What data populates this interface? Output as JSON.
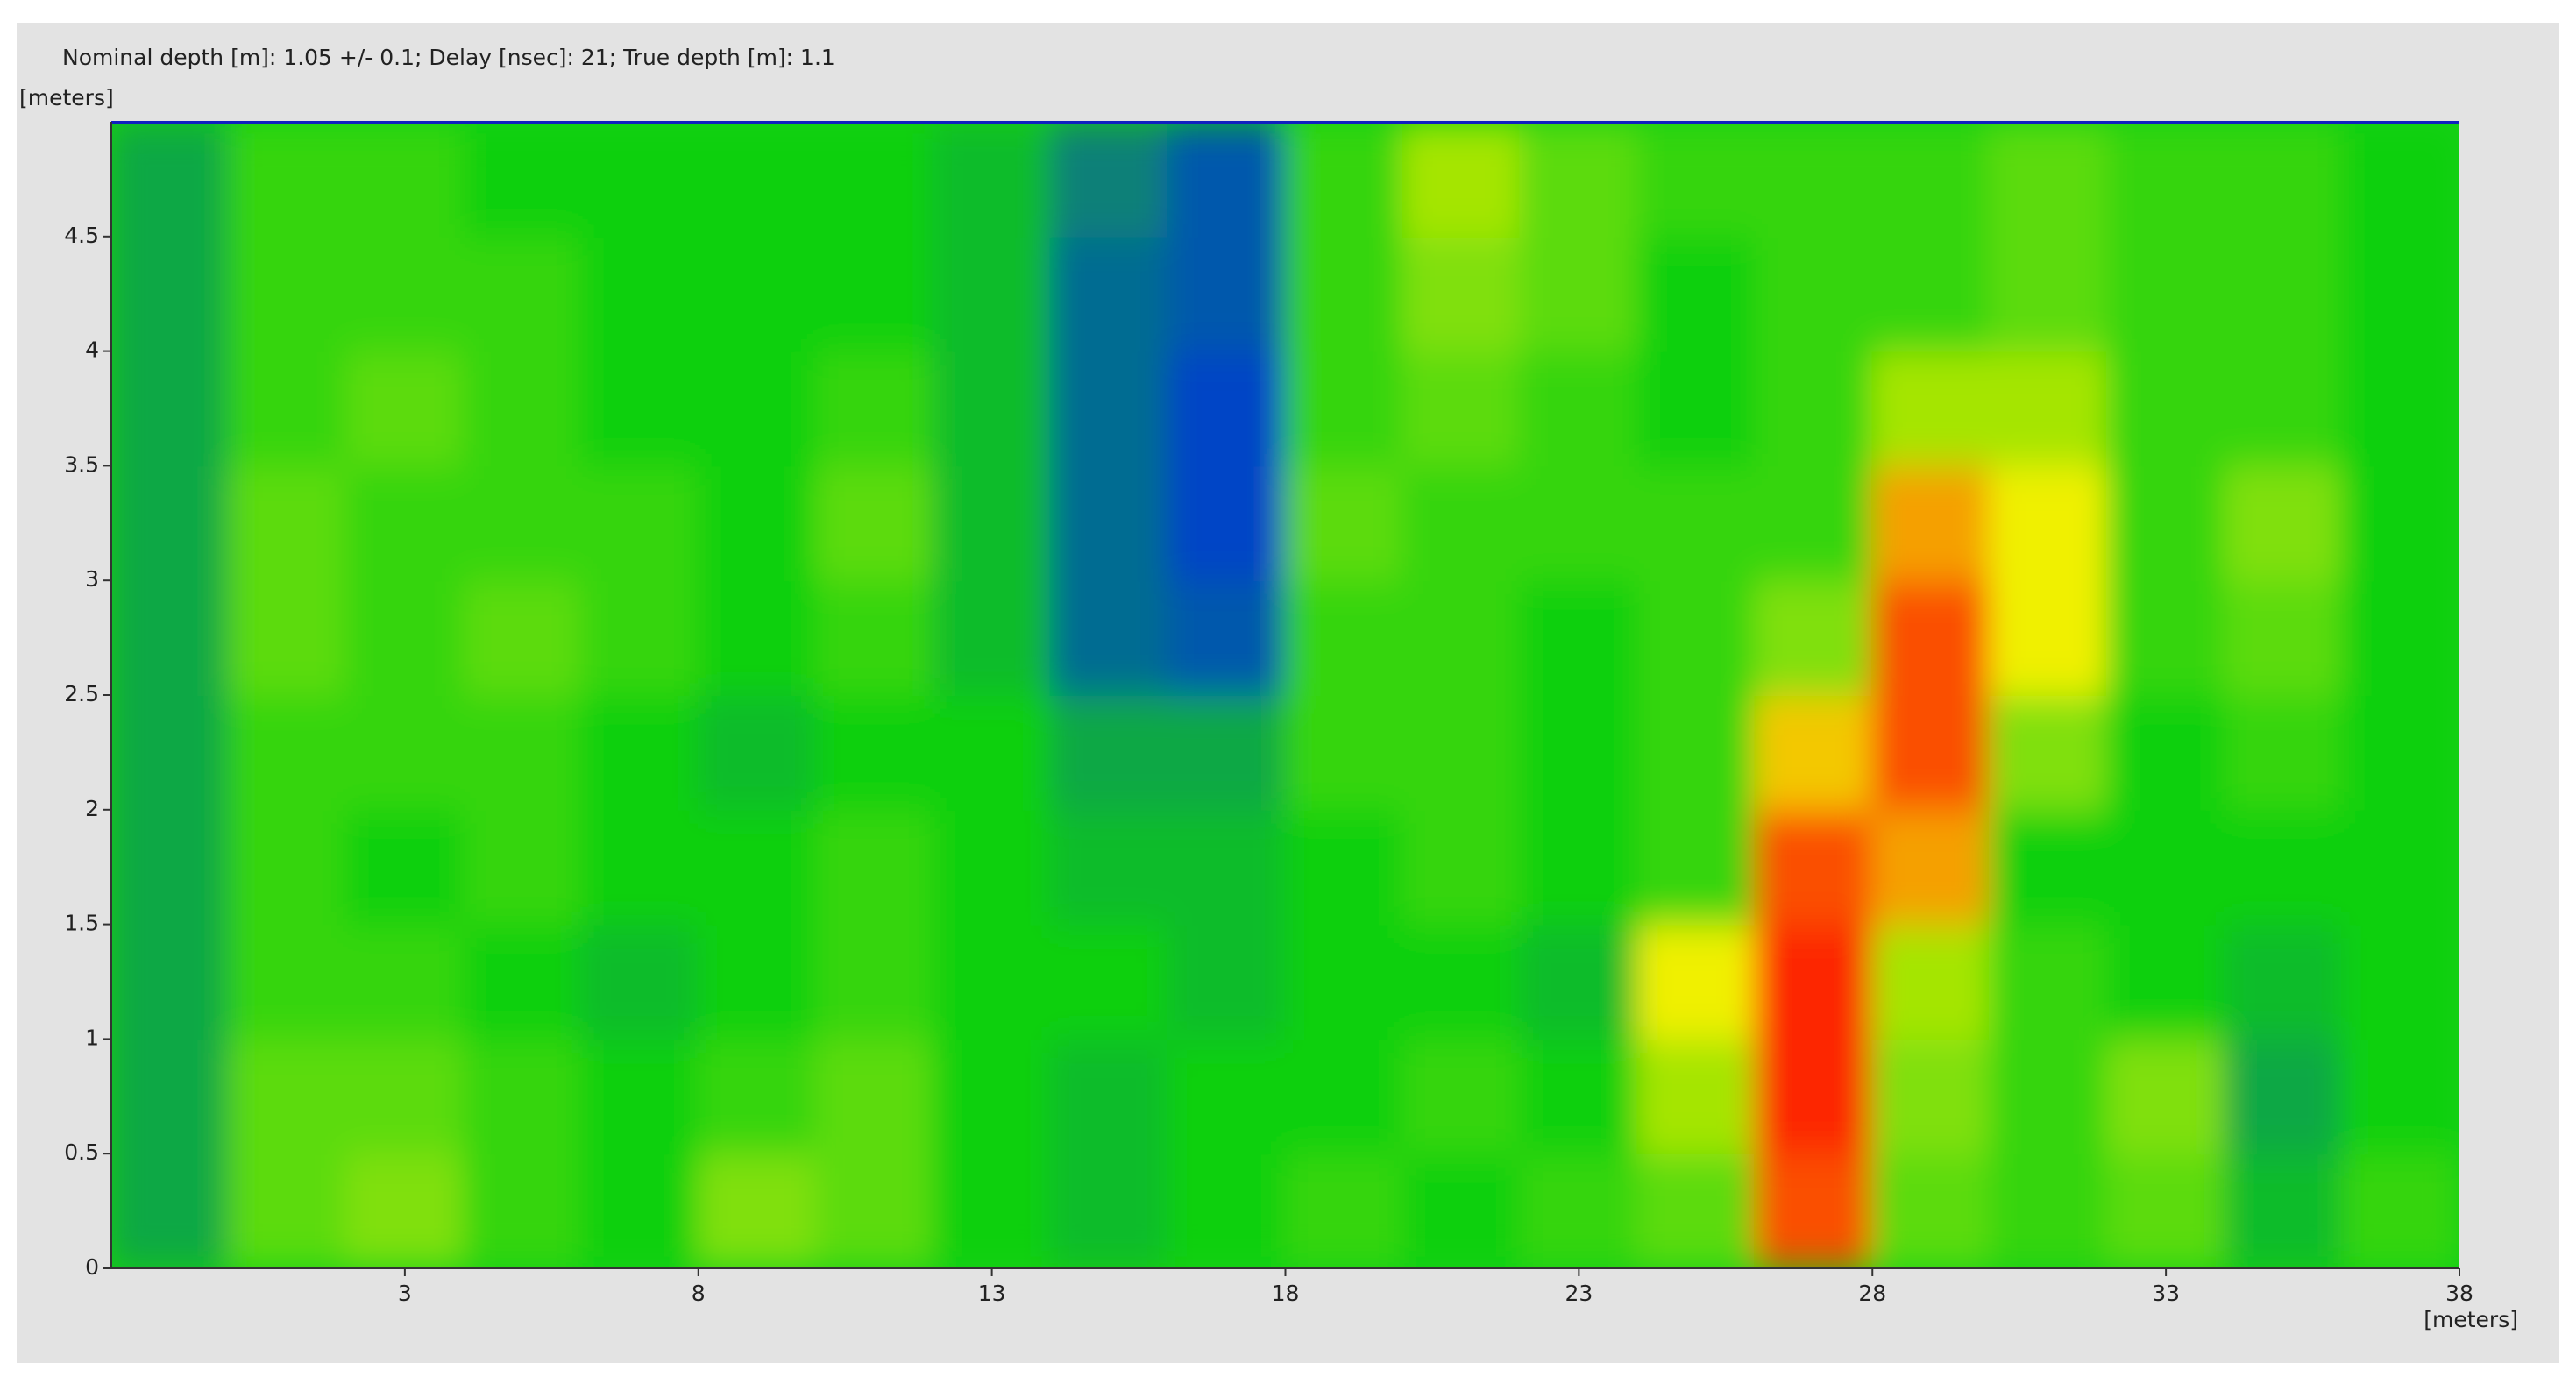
{
  "chart_data": {
    "type": "heatmap",
    "title": "Nominal depth [m]: 1.05 +/- 0.1;   Delay [nsec]: 21;   True depth [m]: 1.1",
    "xlabel": "[meters]",
    "ylabel": "[meters]",
    "xlim": [
      -2,
      38
    ],
    "ylim": [
      0,
      5
    ],
    "xticks": [
      3,
      8,
      13,
      18,
      23,
      28,
      33,
      38
    ],
    "yticks": [
      0,
      0.5,
      1,
      1.5,
      2,
      2.5,
      3,
      3.5,
      4,
      4.5
    ],
    "xbins": [
      -2,
      0,
      2,
      4,
      6,
      8,
      10,
      12,
      14,
      16,
      18,
      20,
      22,
      24,
      26,
      28,
      30,
      32,
      34,
      36,
      38
    ],
    "ybins": [
      0,
      0.5,
      1,
      1.5,
      2,
      2.5,
      3,
      3.5,
      4,
      4.5,
      5
    ],
    "colorscale": [
      [
        0,
        "#0030e0"
      ],
      [
        0.4,
        "#10d010"
      ],
      [
        0.7,
        "#f0f000"
      ],
      [
        1,
        "#ff0000"
      ]
    ],
    "z": [
      [
        0.3,
        0.5,
        0.55,
        0.45,
        0.4,
        0.55,
        0.5,
        0.4,
        0.35,
        0.4,
        0.45,
        0.4,
        0.45,
        0.5,
        0.9,
        0.5,
        0.45,
        0.5,
        0.35,
        0.45
      ],
      [
        0.3,
        0.5,
        0.5,
        0.45,
        0.4,
        0.45,
        0.5,
        0.4,
        0.35,
        0.4,
        0.4,
        0.45,
        0.4,
        0.6,
        0.95,
        0.55,
        0.45,
        0.55,
        0.3,
        0.4
      ],
      [
        0.3,
        0.45,
        0.45,
        0.4,
        0.35,
        0.4,
        0.45,
        0.4,
        0.4,
        0.35,
        0.4,
        0.4,
        0.35,
        0.7,
        0.95,
        0.6,
        0.45,
        0.4,
        0.35,
        0.4
      ],
      [
        0.3,
        0.45,
        0.4,
        0.45,
        0.4,
        0.4,
        0.45,
        0.4,
        0.35,
        0.35,
        0.4,
        0.45,
        0.4,
        0.45,
        0.9,
        0.8,
        0.4,
        0.4,
        0.4,
        0.4
      ],
      [
        0.3,
        0.45,
        0.45,
        0.45,
        0.4,
        0.35,
        0.4,
        0.4,
        0.3,
        0.3,
        0.45,
        0.45,
        0.4,
        0.45,
        0.75,
        0.9,
        0.55,
        0.4,
        0.45,
        0.4
      ],
      [
        0.3,
        0.5,
        0.45,
        0.5,
        0.45,
        0.4,
        0.45,
        0.35,
        0.15,
        0.1,
        0.45,
        0.45,
        0.4,
        0.45,
        0.55,
        0.9,
        0.7,
        0.45,
        0.5,
        0.4
      ],
      [
        0.3,
        0.5,
        0.45,
        0.45,
        0.45,
        0.4,
        0.5,
        0.35,
        0.15,
        0.05,
        0.5,
        0.45,
        0.45,
        0.45,
        0.45,
        0.8,
        0.7,
        0.45,
        0.55,
        0.4
      ],
      [
        0.3,
        0.45,
        0.5,
        0.45,
        0.4,
        0.4,
        0.45,
        0.35,
        0.15,
        0.05,
        0.45,
        0.5,
        0.45,
        0.4,
        0.45,
        0.6,
        0.6,
        0.45,
        0.45,
        0.4
      ],
      [
        0.3,
        0.45,
        0.45,
        0.45,
        0.4,
        0.4,
        0.4,
        0.35,
        0.15,
        0.1,
        0.45,
        0.55,
        0.5,
        0.4,
        0.45,
        0.45,
        0.5,
        0.45,
        0.45,
        0.4
      ],
      [
        0.3,
        0.45,
        0.45,
        0.4,
        0.4,
        0.4,
        0.4,
        0.35,
        0.2,
        0.1,
        0.45,
        0.6,
        0.5,
        0.45,
        0.45,
        0.45,
        0.5,
        0.45,
        0.45,
        0.4
      ]
    ]
  }
}
